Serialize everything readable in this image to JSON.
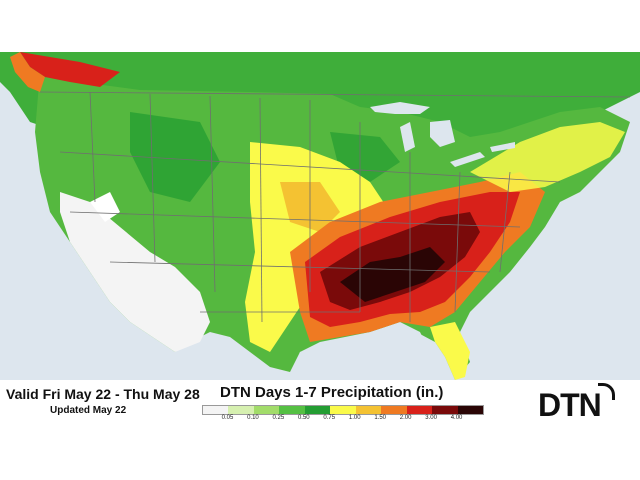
{
  "map": {
    "title": "DTN Days 1-7 Precipitation (in.)",
    "valid_text": "Valid Fri May 22 - Thu May 28",
    "updated_text": "Updated May 22",
    "logo_text": "DTN",
    "legend": {
      "labels": [
        "0.05",
        "0.10",
        "0.25",
        "0.50",
        "0.75",
        "1.00",
        "1.50",
        "2.00",
        "3.00",
        "4.00"
      ],
      "colors": [
        "#f4f4f4",
        "#d6f0b0",
        "#a2dc6a",
        "#55c043",
        "#239d32",
        "#fafa4a",
        "#f4c232",
        "#ef7a22",
        "#d8211a",
        "#7a0a0a",
        "#2a0505"
      ]
    },
    "colors": {
      "ocean": "#dde6ee",
      "land_base": "#55b83f",
      "lakes": "#dde6ee",
      "borders": "#7a7a7a"
    }
  }
}
